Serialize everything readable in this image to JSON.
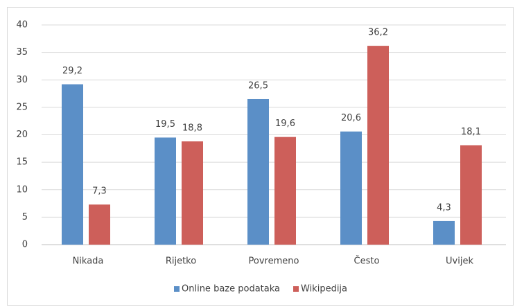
{
  "chart_data": {
    "type": "bar",
    "categories": [
      "Nikada",
      "Rijetko",
      "Povremeno",
      "Često",
      "Uvijek"
    ],
    "series": [
      {
        "name": "Online baze podataka",
        "color": "#5b8fc7",
        "values": [
          29.2,
          19.5,
          26.5,
          20.6,
          4.3
        ],
        "value_labels": [
          "29,2",
          "19,5",
          "26,5",
          "20,6",
          "4,3"
        ]
      },
      {
        "name": "Wikipedija",
        "color": "#cd5f5a",
        "values": [
          7.3,
          18.8,
          19.6,
          36.2,
          18.1
        ],
        "value_labels": [
          "7,3",
          "18,8",
          "19,6",
          "36,2",
          "18,1"
        ]
      }
    ],
    "ylim": [
      0,
      40
    ],
    "yticks": [
      0,
      5,
      10,
      15,
      20,
      25,
      30,
      35,
      40
    ],
    "grid": true,
    "legend": "bottom"
  }
}
